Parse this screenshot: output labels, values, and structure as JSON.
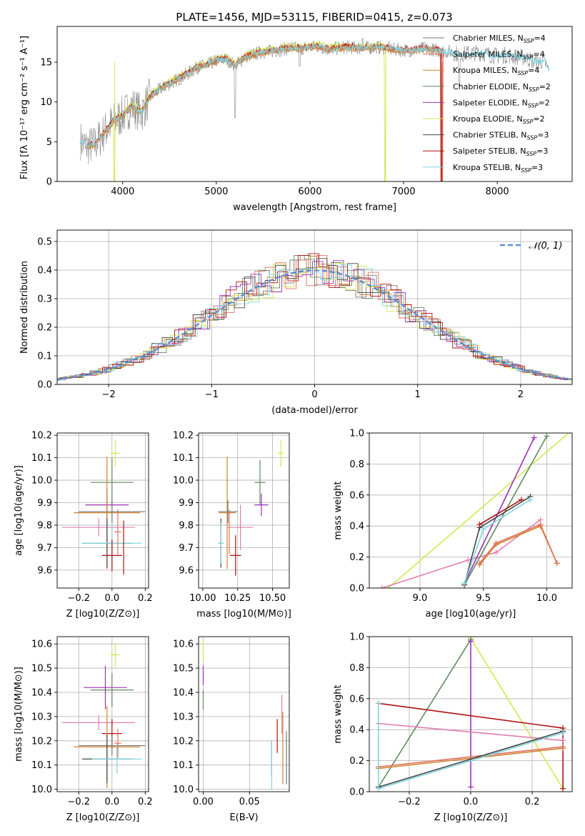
{
  "figure": {
    "title": "PLATE=1456, MJD=53115, FIBERID=0415, z=0.073"
  },
  "colors": {
    "chabrier_miles": "#777777",
    "salpeter_miles": "#e07060",
    "kroupa_miles": "#d2822c",
    "chabrier_elodie": "#5f8a5f",
    "salpeter_elodie": "#9b30b5",
    "kroupa_elodie": "#d4e850",
    "chabrier_stelib": "#444444",
    "salpeter_stelib": "#b01010",
    "kroupa_stelib": "#7fd4e0",
    "pink": "#e07db0",
    "normal": "#5b8fd8",
    "grid": "#b0b0b0"
  },
  "legend_spectrum": [
    {
      "key": "chabrier_miles",
      "text": "Chabrier MILES, N",
      "sub": "SSP",
      "tail": "=4"
    },
    {
      "key": "salpeter_miles",
      "text": "Salpeter MILES, N",
      "sub": "SSP",
      "tail": "=4"
    },
    {
      "key": "kroupa_miles",
      "text": "Kroupa MILES, N",
      "sub": "SSP",
      "tail": "=4"
    },
    {
      "key": "chabrier_elodie",
      "text": "Chabrier ELODIE, N",
      "sub": "SSP",
      "tail": "=2"
    },
    {
      "key": "salpeter_elodie",
      "text": "Salpeter ELODIE, N",
      "sub": "SSP",
      "tail": "=2"
    },
    {
      "key": "kroupa_elodie",
      "text": "Kroupa ELODIE, N",
      "sub": "SSP",
      "tail": "=2"
    },
    {
      "key": "chabrier_stelib",
      "text": "Chabrier STELIB, N",
      "sub": "SSP",
      "tail": "=3"
    },
    {
      "key": "salpeter_stelib",
      "text": "Salpeter STELIB, N",
      "sub": "SSP",
      "tail": "=3"
    },
    {
      "key": "kroupa_stelib",
      "text": "Kroupa STELIB, N",
      "sub": "SSP",
      "tail": "=3"
    }
  ],
  "legend_hist": "𝒩(0, 1)",
  "chart_data": [
    {
      "id": "spectrum",
      "type": "line",
      "title": "PLATE=1456, MJD=53115, FIBERID=0415, z=0.073",
      "xlabel": "wavelength [Angstrom, rest frame]",
      "ylabel": "Flux [fλ 10⁻¹⁷ erg cm⁻² s⁻¹ A⁻¹]",
      "xlim": [
        3300,
        8800
      ],
      "ylim": [
        0,
        19.5
      ],
      "xticks": [
        4000,
        5000,
        6000,
        7000,
        8000
      ],
      "yticks": [
        0,
        5,
        10,
        15
      ],
      "grid": false,
      "legend": "top-right",
      "observed_envelope": [
        [
          3550,
          5.2
        ],
        [
          3600,
          4.4
        ],
        [
          3700,
          4.6
        ],
        [
          3800,
          6.2
        ],
        [
          3900,
          7.5
        ],
        [
          4000,
          8.3
        ],
        [
          4100,
          9.5
        ],
        [
          4200,
          8.6
        ],
        [
          4300,
          10.8
        ],
        [
          4400,
          11.6
        ],
        [
          4500,
          12.3
        ],
        [
          4600,
          12.9
        ],
        [
          4700,
          13.6
        ],
        [
          4800,
          14.4
        ],
        [
          4900,
          14.6
        ],
        [
          5000,
          15.2
        ],
        [
          5100,
          15.4
        ],
        [
          5200,
          14.6
        ],
        [
          5300,
          15.6
        ],
        [
          5400,
          16.0
        ],
        [
          5500,
          16.3
        ],
        [
          5600,
          16.4
        ],
        [
          5700,
          16.6
        ],
        [
          5800,
          16.8
        ],
        [
          5900,
          16.7
        ],
        [
          6000,
          16.9
        ],
        [
          6100,
          17.0
        ],
        [
          6200,
          16.6
        ],
        [
          6300,
          16.8
        ],
        [
          6400,
          16.9
        ],
        [
          6500,
          16.8
        ],
        [
          6600,
          16.8
        ],
        [
          6700,
          16.9
        ],
        [
          6800,
          16.8
        ],
        [
          6900,
          16.6
        ],
        [
          7000,
          16.5
        ],
        [
          7100,
          16.5
        ],
        [
          7200,
          16.7
        ],
        [
          7300,
          16.6
        ],
        [
          7400,
          16.4
        ],
        [
          7500,
          16.3
        ],
        [
          7600,
          16.0
        ],
        [
          7700,
          16.1
        ],
        [
          7800,
          16.2
        ],
        [
          7900,
          16.0
        ],
        [
          8000,
          15.8
        ],
        [
          8100,
          15.9
        ],
        [
          8200,
          15.7
        ],
        [
          8300,
          15.6
        ],
        [
          8400,
          15.0
        ],
        [
          8500,
          15.2
        ],
        [
          8550,
          14.0
        ]
      ]
    },
    {
      "id": "residuals",
      "type": "histogram",
      "xlabel": "(data-model)/error",
      "ylabel": "Normed distribution",
      "xlim": [
        -2.5,
        2.5
      ],
      "ylim": [
        0,
        0.54
      ],
      "xticks": [
        -2,
        -1,
        0,
        1,
        2
      ],
      "yticks": [
        0.0,
        0.1,
        0.2,
        0.3,
        0.4,
        0.5
      ],
      "grid": true,
      "legend": "top-right",
      "reference_curve": "normal(0,1)"
    },
    {
      "id": "age_vs_Z",
      "type": "scatter",
      "xlabel": "Z [log10(Z/Z⊙)]",
      "ylabel": "age [log10(age/yr)]",
      "xlim": [
        -0.33,
        0.22
      ],
      "ylim": [
        9.52,
        10.21
      ],
      "xticks": [
        -0.2,
        0.0,
        0.2
      ],
      "yticks": [
        9.6,
        9.7,
        9.8,
        9.9,
        10.0,
        10.1,
        10.2
      ],
      "grid": true,
      "points": [
        {
          "key": "kroupa_elodie",
          "x": 0.02,
          "y": 10.12,
          "xerr": 0.03,
          "yerr": 0.06
        },
        {
          "key": "chabrier_elodie",
          "x": 0.0,
          "y": 9.99,
          "xerr": 0.13,
          "yerr": 0.11
        },
        {
          "key": "salpeter_elodie",
          "x": -0.03,
          "y": 9.89,
          "xerr": 0.13,
          "yerr": 0.07
        },
        {
          "key": "kroupa_miles",
          "x": -0.03,
          "y": 9.855,
          "xerr": 0.2,
          "yerr": 0.25
        },
        {
          "key": "chabrier_miles",
          "x": 0.0,
          "y": 9.86,
          "xerr": 0.2,
          "yerr": 0.05
        },
        {
          "key": "pink",
          "x": -0.08,
          "y": 9.79,
          "xerr": 0.22,
          "yerr": 0.04
        },
        {
          "key": "chabrier_stelib",
          "x": -0.03,
          "y": 9.72,
          "xerr": 0.15,
          "yerr": 0.11
        },
        {
          "key": "kroupa_stelib",
          "x": 0.0,
          "y": 9.72,
          "xerr": 0.18,
          "yerr": 0.09
        },
        {
          "key": "salpeter_miles",
          "x": 0.035,
          "y": 9.77,
          "xerr": 0.02,
          "yerr": 0.1
        },
        {
          "key": "salpeter_stelib",
          "x": 0.0,
          "y": 9.665,
          "xerr": 0.06,
          "yerr": 0.07
        },
        {
          "key": "salpeter_stelib",
          "x": 0.07,
          "y": 9.7,
          "xerr": 0.0,
          "yerr": 0.12
        }
      ]
    },
    {
      "id": "age_vs_mass",
      "type": "scatter",
      "xlabel": "mass [log10(M/M⊙)]",
      "ylabel": "",
      "xlim": [
        9.97,
        10.62
      ],
      "ylim": [
        9.52,
        10.21
      ],
      "xticks": [
        10.0,
        10.25,
        10.5
      ],
      "yticks": [
        9.6,
        9.7,
        9.8,
        9.9,
        10.0,
        10.1,
        10.2
      ],
      "grid": true,
      "points": [
        {
          "key": "kroupa_elodie",
          "x": 10.56,
          "y": 10.12,
          "xerr": 0.02,
          "yerr": 0.06
        },
        {
          "key": "chabrier_elodie",
          "x": 10.41,
          "y": 9.99,
          "xerr": 0.04,
          "yerr": 0.1
        },
        {
          "key": "salpeter_elodie",
          "x": 10.42,
          "y": 9.89,
          "xerr": 0.05,
          "yerr": 0.05
        },
        {
          "key": "kroupa_miles",
          "x": 10.175,
          "y": 9.855,
          "xerr": 0.06,
          "yerr": 0.25
        },
        {
          "key": "chabrier_miles",
          "x": 10.18,
          "y": 9.86,
          "xerr": 0.07,
          "yerr": 0.05
        },
        {
          "key": "pink",
          "x": 10.27,
          "y": 9.79,
          "xerr": 0.09,
          "yerr": 0.1
        },
        {
          "key": "chabrier_stelib",
          "x": 10.13,
          "y": 9.72,
          "xerr": 0.02,
          "yerr": 0.11
        },
        {
          "key": "kroupa_stelib",
          "x": 10.13,
          "y": 9.72,
          "xerr": 0.02,
          "yerr": 0.09
        },
        {
          "key": "salpeter_miles",
          "x": 10.19,
          "y": 9.77,
          "xerr": 0.0,
          "yerr": 0.1
        },
        {
          "key": "salpeter_stelib",
          "x": 10.235,
          "y": 9.665,
          "xerr": 0.04,
          "yerr": 0.09
        }
      ]
    },
    {
      "id": "weight_vs_age",
      "type": "line",
      "xlabel": "age [log10(age/yr)]",
      "ylabel": "mass weight",
      "xlim": [
        8.6,
        10.2
      ],
      "ylim": [
        0,
        1.0
      ],
      "xticks": [
        9.0,
        9.5,
        10.0
      ],
      "yticks": [
        0.0,
        0.2,
        0.4,
        0.6,
        0.8,
        1.0
      ],
      "grid": true,
      "series": [
        {
          "key": "kroupa_elodie",
          "x": [
            8.75,
            10.2
          ],
          "y": [
            0.0,
            1.02
          ]
        },
        {
          "key": "pink",
          "x": [
            8.7,
            9.38,
            9.6,
            9.95
          ],
          "y": [
            0.0,
            0.18,
            0.23,
            0.44
          ]
        },
        {
          "key": "salpeter_elodie",
          "x": [
            9.35,
            9.9
          ],
          "y": [
            0.03,
            0.97
          ]
        },
        {
          "key": "chabrier_elodie",
          "x": [
            9.35,
            10.0
          ],
          "y": [
            0.02,
            0.98
          ]
        },
        {
          "key": "chabrier_stelib",
          "x": [
            9.35,
            9.47,
            9.87
          ],
          "y": [
            0.02,
            0.39,
            0.59
          ]
        },
        {
          "key": "kroupa_stelib",
          "x": [
            9.35,
            9.5,
            9.87
          ],
          "y": [
            0.03,
            0.38,
            0.57
          ]
        },
        {
          "key": "salpeter_stelib",
          "x": [
            9.47,
            9.8
          ],
          "y": [
            0.41,
            0.57
          ]
        },
        {
          "key": "kroupa_miles",
          "x": [
            9.47,
            9.6,
            9.95,
            10.08
          ],
          "y": [
            0.15,
            0.28,
            0.4,
            0.16
          ]
        },
        {
          "key": "salpeter_miles",
          "x": [
            9.47,
            9.6,
            9.95,
            10.08
          ],
          "y": [
            0.16,
            0.29,
            0.41,
            0.16
          ]
        }
      ]
    },
    {
      "id": "mass_vs_Z",
      "type": "scatter",
      "xlabel": "Z [log10(Z/Z⊙)]",
      "ylabel": "mass [log10(M/M⊙)]",
      "xlim": [
        -0.33,
        0.22
      ],
      "ylim": [
        9.99,
        10.63
      ],
      "xticks": [
        -0.2,
        0.0,
        0.2
      ],
      "yticks": [
        10.0,
        10.1,
        10.2,
        10.3,
        10.4,
        10.5,
        10.6
      ],
      "grid": true,
      "points": [
        {
          "key": "kroupa_elodie",
          "x": 0.02,
          "y": 10.555,
          "xerr": 0.03,
          "yerr": 0.05
        },
        {
          "key": "salpeter_elodie",
          "x": -0.04,
          "y": 10.42,
          "xerr": 0.13,
          "yerr": 0.09
        },
        {
          "key": "chabrier_elodie",
          "x": 0.0,
          "y": 10.41,
          "xerr": 0.13,
          "yerr": 0.07
        },
        {
          "key": "pink",
          "x": -0.08,
          "y": 10.275,
          "xerr": 0.22,
          "yerr": 0.03
        },
        {
          "key": "salpeter_stelib",
          "x": 0.0,
          "y": 10.23,
          "xerr": 0.06,
          "yerr": 0.06
        },
        {
          "key": "kroupa_miles",
          "x": -0.03,
          "y": 10.175,
          "xerr": 0.2,
          "yerr": 0.17
        },
        {
          "key": "chabrier_miles",
          "x": 0.0,
          "y": 10.18,
          "xerr": 0.2,
          "yerr": 0.04
        },
        {
          "key": "chabrier_stelib",
          "x": -0.03,
          "y": 10.125,
          "xerr": 0.15,
          "yerr": 0.1
        },
        {
          "key": "kroupa_stelib",
          "x": 0.03,
          "y": 10.125,
          "xerr": 0.15,
          "yerr": 0.06
        },
        {
          "key": "salpeter_miles",
          "x": 0.035,
          "y": 10.19,
          "xerr": 0.02,
          "yerr": 0.06
        }
      ]
    },
    {
      "id": "mass_vs_ebv",
      "type": "scatter",
      "xlabel": "E(B-V)",
      "ylabel": "",
      "xlim": [
        -0.005,
        0.093
      ],
      "ylim": [
        9.99,
        10.63
      ],
      "xticks": [
        0.0,
        0.05
      ],
      "yticks": [
        10.0,
        10.1,
        10.2,
        10.3,
        10.4,
        10.5,
        10.6
      ],
      "grid": true,
      "points": [
        {
          "key": "kroupa_elodie",
          "x": 0.0,
          "y": 10.57,
          "xerr": 0,
          "yerr": 0.04
        },
        {
          "key": "salpeter_elodie",
          "x": 0.0,
          "y": 10.47,
          "xerr": 0,
          "yerr": 0.04
        },
        {
          "key": "chabrier_elodie",
          "x": 0.0,
          "y": 10.37,
          "xerr": 0,
          "yerr": 0.04
        },
        {
          "key": "pink",
          "x": 0.085,
          "y": 10.31,
          "xerr": 0,
          "yerr": 0.08
        },
        {
          "key": "salpeter_stelib",
          "x": 0.08,
          "y": 10.22,
          "xerr": 0,
          "yerr": 0.07
        },
        {
          "key": "kroupa_miles",
          "x": 0.086,
          "y": 10.17,
          "xerr": 0,
          "yerr": 0.15
        },
        {
          "key": "chabrier_miles",
          "x": 0.09,
          "y": 10.13,
          "xerr": 0,
          "yerr": 0.11
        },
        {
          "key": "chabrier_stelib",
          "x": 0.074,
          "y": 10.13,
          "xerr": 0,
          "yerr": 0.07
        },
        {
          "key": "kroupa_stelib",
          "x": 0.074,
          "y": 10.1,
          "xerr": 0,
          "yerr": 0.1
        }
      ]
    },
    {
      "id": "weight_vs_Z",
      "type": "line",
      "xlabel": "Z [log10(Z/Z⊙)]",
      "ylabel": "mass weight",
      "xlim": [
        -0.33,
        0.33
      ],
      "ylim": [
        0,
        1.0
      ],
      "xticks": [
        -0.2,
        0.0,
        0.2
      ],
      "yticks": [
        0.0,
        0.2,
        0.4,
        0.6,
        0.8,
        1.0
      ],
      "grid": true,
      "series": [
        {
          "key": "kroupa_elodie",
          "x": [
            0.0,
            0.3
          ],
          "y": [
            0.99,
            0.02
          ]
        },
        {
          "key": "chabrier_elodie",
          "x": [
            -0.3,
            0.0
          ],
          "y": [
            0.03,
            0.98
          ]
        },
        {
          "key": "salpeter_elodie",
          "x": [
            0.0,
            0.0
          ],
          "y": [
            0.03,
            0.97
          ]
        },
        {
          "key": "salpeter_stelib",
          "x": [
            -0.3,
            0.3,
            0.3
          ],
          "y": [
            0.57,
            0.41,
            0.02
          ]
        },
        {
          "key": "pink",
          "x": [
            -0.3,
            0.3
          ],
          "y": [
            0.44,
            0.33
          ]
        },
        {
          "key": "kroupa_miles",
          "x": [
            -0.3,
            0.3
          ],
          "y": [
            0.15,
            0.28
          ]
        },
        {
          "key": "salpeter_miles",
          "x": [
            -0.3,
            0.3
          ],
          "y": [
            0.16,
            0.29
          ]
        },
        {
          "key": "chabrier_stelib",
          "x": [
            -0.3,
            0.3
          ],
          "y": [
            0.03,
            0.39
          ]
        },
        {
          "key": "kroupa_stelib",
          "x": [
            -0.3,
            -0.3,
            0.3
          ],
          "y": [
            0.57,
            0.02,
            0.38
          ]
        }
      ]
    }
  ]
}
